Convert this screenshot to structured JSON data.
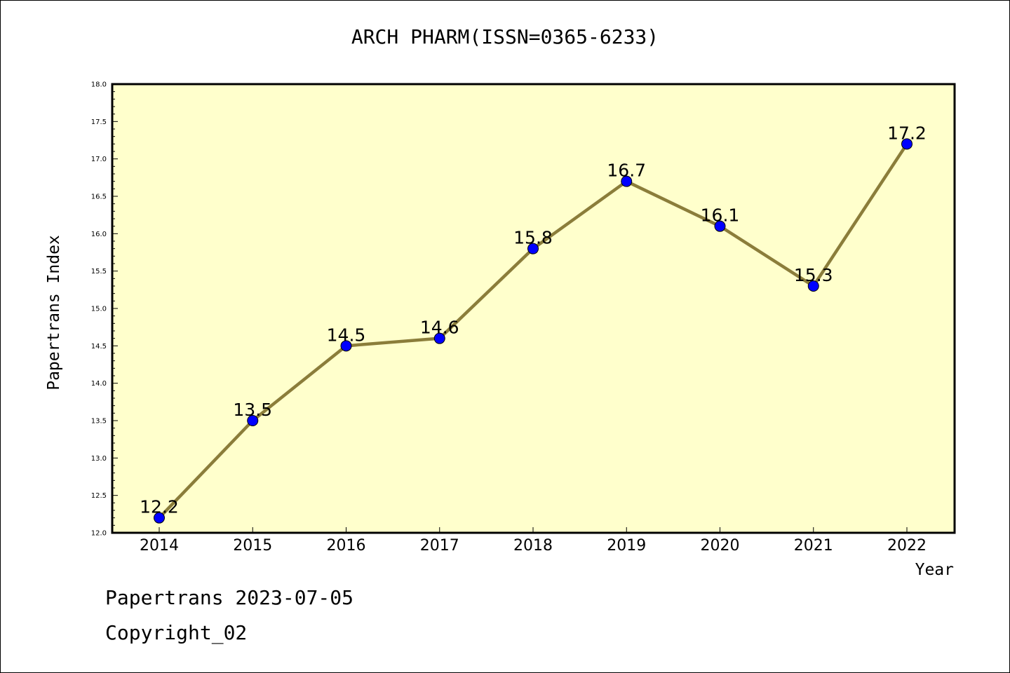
{
  "chart_data": {
    "type": "line",
    "title": "ARCH PHARM(ISSN=0365-6233)",
    "xlabel": "Year",
    "ylabel": "Papertrans Index",
    "categories": [
      "2014",
      "2015",
      "2016",
      "2017",
      "2018",
      "2019",
      "2020",
      "2021",
      "2022"
    ],
    "values": [
      12.2,
      13.5,
      14.5,
      14.6,
      15.8,
      16.7,
      16.1,
      15.3,
      17.2
    ],
    "data_labels": [
      "12.2",
      "13.5",
      "14.5",
      "14.6",
      "15.8",
      "16.7",
      "16.1",
      "15.3",
      "17.2"
    ],
    "ylim": [
      12.0,
      18.0
    ],
    "yticks": [
      "12.0",
      "12.5",
      "13.0",
      "13.5",
      "14.0",
      "14.5",
      "15.0",
      "15.5",
      "16.0",
      "16.5",
      "17.0",
      "17.5",
      "18.0"
    ],
    "grid": false,
    "colors": {
      "plot_background": "#ffffcc",
      "line": "#8b7d3a",
      "marker": "#0000ff"
    }
  },
  "footer": {
    "line1": "Papertrans 2023-07-05",
    "line2": "Copyright_02"
  }
}
